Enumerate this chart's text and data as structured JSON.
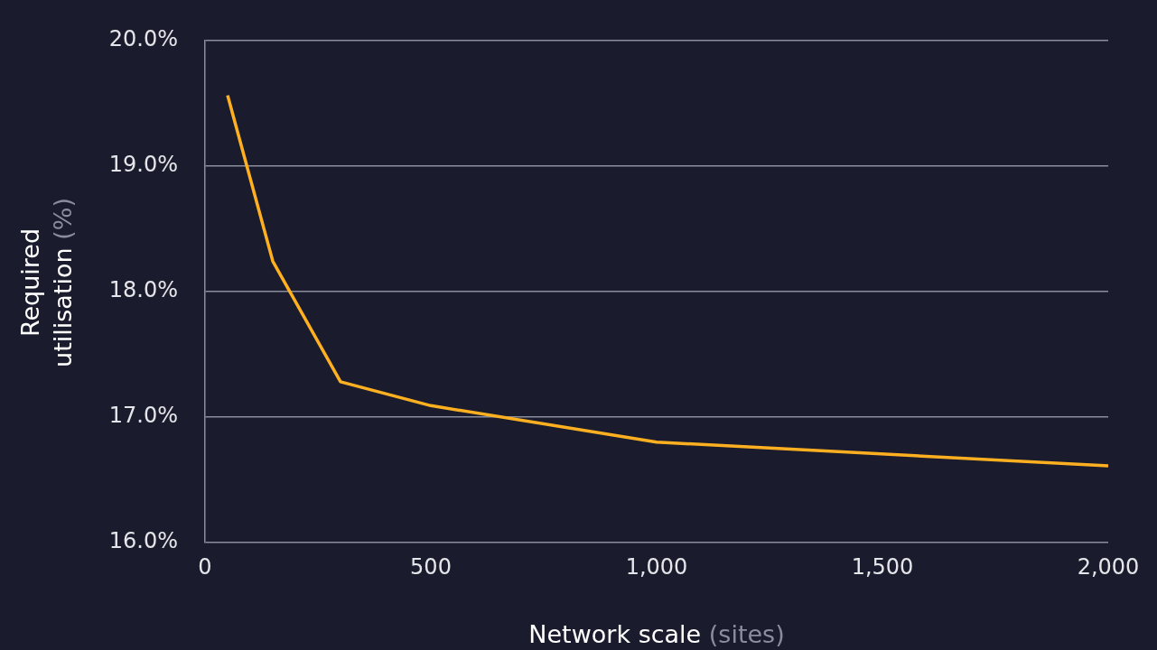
{
  "chart_data": {
    "type": "line",
    "xlabel": "Network scale (sites)",
    "ylabel": "Required utilisation (%)",
    "x": [
      50,
      150,
      300,
      500,
      1000,
      2000
    ],
    "series": [
      {
        "color": "#ffb020",
        "values": [
          19.56,
          18.24,
          17.28,
          17.09,
          16.8,
          16.61
        ]
      }
    ],
    "xlim": [
      0,
      2000
    ],
    "xticks": [
      0,
      500,
      {
        "value": 1000,
        "label": "1,000"
      },
      {
        "value": 1500,
        "label": "1,500"
      },
      {
        "value": 2000,
        "label": "2,000"
      }
    ],
    "ylim": [
      16,
      20
    ],
    "yticks": [
      {
        "value": 16,
        "label": "16.0%"
      },
      {
        "value": 17,
        "label": "17.0%"
      },
      {
        "value": 18,
        "label": "18.0%"
      },
      {
        "value": 19,
        "label": "19.0%"
      },
      {
        "value": 20,
        "label": "20.0%"
      }
    ],
    "grid": "y",
    "legend": false,
    "marker": "none",
    "line_style": "solid"
  }
}
